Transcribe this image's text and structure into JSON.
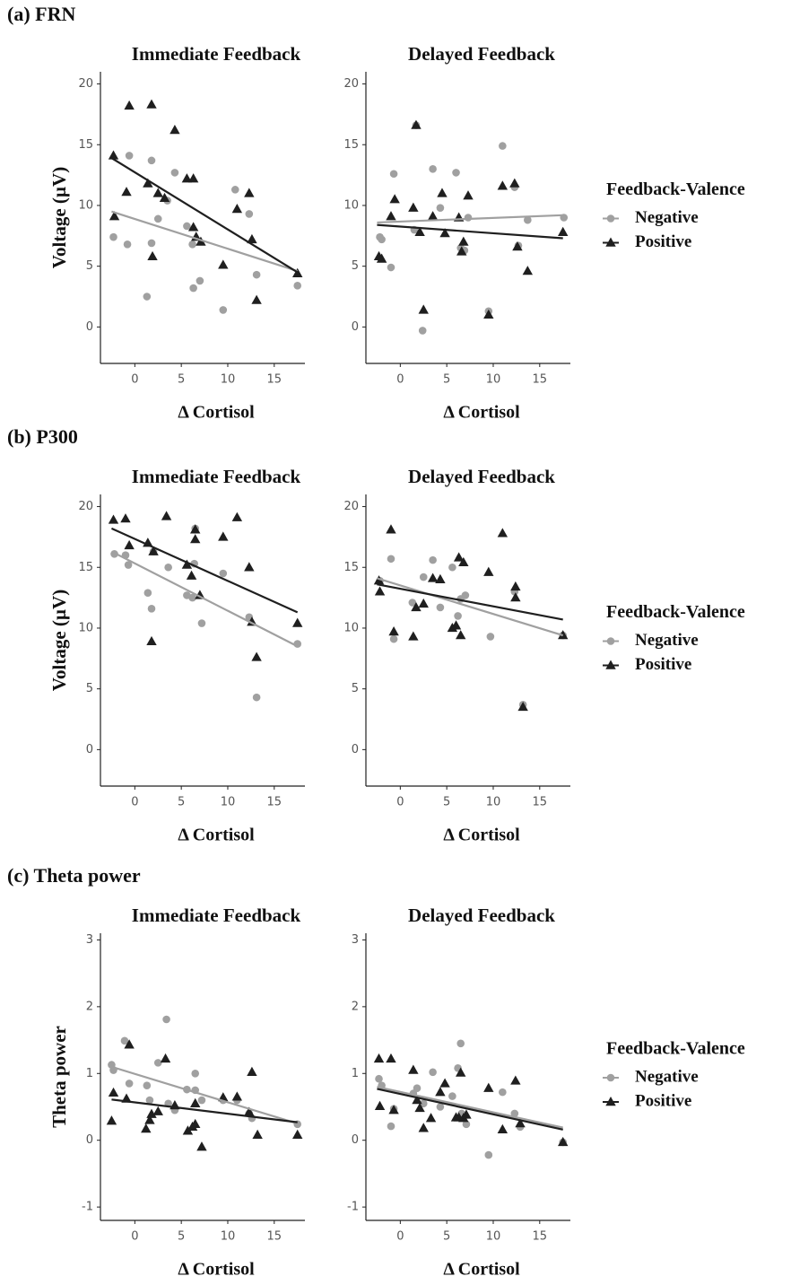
{
  "chart_data": [
    {
      "type": "scatter",
      "panel_label": "(a) FRN",
      "title": "Immediate Feedback",
      "xlabel": "Δ Cortisol",
      "ylabel": "Voltage (µV)",
      "xlim": [
        -3.7,
        18.3
      ],
      "ylim": [
        -3,
        21
      ],
      "xticks": [
        0,
        5,
        10,
        15
      ],
      "yticks": [
        0,
        5,
        10,
        15,
        20
      ],
      "series": [
        {
          "color": "#a0a0a0",
          "marker": "circle",
          "x": [
            -2.3,
            -0.8,
            -0.6,
            1.3,
            1.8,
            1.8,
            2.5,
            3.5,
            4.3,
            5.6,
            6.2,
            6.3,
            7.0,
            9.5,
            10.8,
            12.3,
            13.1,
            17.5
          ],
          "values": [
            7.4,
            6.8,
            14.1,
            2.5,
            13.7,
            6.9,
            8.9,
            10.4,
            12.7,
            8.3,
            6.8,
            3.2,
            3.8,
            1.4,
            11.3,
            9.3,
            4.3,
            3.4
          ],
          "fit_x": [
            -2.5,
            17.5
          ],
          "fit_y": [
            9.5,
            4.6
          ]
        },
        {
          "color": "#1f1f1f",
          "marker": "triangle",
          "x": [
            -2.3,
            -2.2,
            -0.9,
            -0.6,
            1.4,
            1.8,
            1.9,
            2.5,
            3.2,
            4.3,
            5.6,
            6.3,
            6.3,
            6.6,
            7.1,
            9.5,
            11.0,
            12.3,
            12.6,
            13.1,
            17.5
          ],
          "values": [
            14.1,
            9.1,
            11.1,
            18.2,
            11.8,
            18.3,
            5.8,
            11.0,
            10.6,
            16.2,
            12.2,
            12.2,
            8.2,
            7.4,
            7.0,
            5.1,
            9.7,
            11.0,
            7.2,
            2.2,
            4.4
          ],
          "fit_x": [
            -2.5,
            17.5
          ],
          "fit_y": [
            13.9,
            4.5
          ]
        }
      ]
    },
    {
      "type": "scatter",
      "title": "Delayed Feedback",
      "xlabel": "Δ Cortisol",
      "legend_title": "Feedback-Valence",
      "xlim": [
        -3.7,
        18.3
      ],
      "ylim": [
        -3,
        21
      ],
      "xticks": [
        0,
        5,
        10,
        15
      ],
      "yticks": [
        0,
        5,
        10,
        15,
        20
      ],
      "series": [
        {
          "name": "Negative",
          "color": "#a0a0a0",
          "marker": "circle",
          "x": [
            -2.2,
            -2.0,
            -1.0,
            -0.7,
            1.5,
            1.7,
            2.4,
            3.5,
            4.3,
            6.0,
            6.5,
            6.9,
            7.3,
            9.5,
            11.0,
            12.3,
            12.7,
            13.7,
            17.6
          ],
          "values": [
            7.4,
            7.2,
            4.9,
            12.6,
            8.0,
            16.6,
            -0.3,
            13.0,
            9.8,
            12.7,
            6.5,
            6.3,
            9.0,
            1.3,
            14.9,
            11.5,
            6.7,
            8.8,
            9.0
          ],
          "fit_x": [
            -2.5,
            17.5
          ],
          "fit_y": [
            8.6,
            9.2
          ]
        },
        {
          "name": "Positive",
          "color": "#1f1f1f",
          "marker": "triangle",
          "x": [
            -2.3,
            -2.0,
            -1.0,
            -0.6,
            1.4,
            1.7,
            2.1,
            2.5,
            3.5,
            4.5,
            4.8,
            6.3,
            6.6,
            6.8,
            7.3,
            9.5,
            11.0,
            12.3,
            12.6,
            13.7,
            17.5
          ],
          "values": [
            5.8,
            5.6,
            9.1,
            10.5,
            9.8,
            16.6,
            7.8,
            1.4,
            9.1,
            11.0,
            7.7,
            9.0,
            6.2,
            7.0,
            10.8,
            1.0,
            11.6,
            11.8,
            6.6,
            4.6,
            7.8
          ],
          "fit_x": [
            -2.5,
            17.5
          ],
          "fit_y": [
            8.4,
            7.3
          ]
        }
      ]
    },
    {
      "type": "scatter",
      "panel_label": "(b) P300",
      "title": "Immediate Feedback",
      "xlabel": "Δ Cortisol",
      "ylabel": "Voltage (µV)",
      "xlim": [
        -3.7,
        18.3
      ],
      "ylim": [
        -3,
        21
      ],
      "xticks": [
        0,
        5,
        10,
        15
      ],
      "yticks": [
        0,
        5,
        10,
        15,
        20
      ],
      "series": [
        {
          "color": "#a0a0a0",
          "marker": "circle",
          "x": [
            -2.2,
            -1.0,
            -0.7,
            1.4,
            1.8,
            2.0,
            3.6,
            5.6,
            6.2,
            6.4,
            6.5,
            7.2,
            9.5,
            12.3,
            13.1,
            17.5
          ],
          "values": [
            16.1,
            16.0,
            15.2,
            12.9,
            11.6,
            16.3,
            15.0,
            12.7,
            12.5,
            15.3,
            18.2,
            10.4,
            14.5,
            10.9,
            4.3,
            8.7
          ],
          "fit_x": [
            -2.5,
            17.5
          ],
          "fit_y": [
            16.3,
            8.5
          ]
        },
        {
          "color": "#1f1f1f",
          "marker": "triangle",
          "x": [
            -2.3,
            -1.0,
            -0.6,
            1.4,
            1.8,
            2.0,
            3.4,
            5.6,
            6.1,
            6.5,
            6.5,
            7.0,
            9.5,
            11.0,
            12.3,
            12.6,
            13.1,
            17.5
          ],
          "values": [
            18.9,
            19.0,
            16.8,
            17.0,
            8.9,
            16.3,
            19.2,
            15.2,
            14.3,
            18.1,
            17.3,
            12.7,
            17.5,
            19.1,
            15.0,
            10.5,
            7.6,
            10.4
          ],
          "fit_x": [
            -2.5,
            17.5
          ],
          "fit_y": [
            18.2,
            11.3
          ]
        }
      ]
    },
    {
      "type": "scatter",
      "title": "Delayed Feedback",
      "xlabel": "Δ Cortisol",
      "legend_title": "Feedback-Valence",
      "xlim": [
        -3.7,
        18.3
      ],
      "ylim": [
        -3,
        21
      ],
      "xticks": [
        0,
        5,
        10,
        15
      ],
      "yticks": [
        0,
        5,
        10,
        15,
        20
      ],
      "series": [
        {
          "name": "Negative",
          "color": "#a0a0a0",
          "marker": "circle",
          "x": [
            -2.2,
            -1.0,
            -0.7,
            1.3,
            2.5,
            3.5,
            4.3,
            5.6,
            6.2,
            6.5,
            7.0,
            9.7,
            12.3,
            13.2,
            17.5
          ],
          "values": [
            13.9,
            15.7,
            9.1,
            12.1,
            14.2,
            15.6,
            11.7,
            15.0,
            11.0,
            12.4,
            12.7,
            9.3,
            13.0,
            3.7,
            9.4
          ],
          "fit_x": [
            -2.5,
            17.5
          ],
          "fit_y": [
            14.1,
            9.4
          ]
        },
        {
          "name": "Positive",
          "color": "#1f1f1f",
          "marker": "triangle",
          "x": [
            -2.3,
            -2.2,
            -1.0,
            -0.7,
            1.4,
            1.7,
            2.5,
            3.5,
            4.3,
            5.6,
            6.0,
            6.3,
            6.5,
            6.8,
            9.5,
            11.0,
            12.4,
            12.4,
            13.2,
            17.5
          ],
          "values": [
            13.9,
            13.0,
            18.1,
            9.7,
            9.3,
            11.7,
            12.0,
            14.1,
            14.0,
            10.0,
            10.2,
            15.8,
            9.4,
            15.4,
            14.6,
            17.8,
            13.4,
            12.5,
            3.5,
            9.4
          ],
          "fit_x": [
            -2.5,
            17.5
          ],
          "fit_y": [
            13.6,
            10.7
          ]
        }
      ]
    },
    {
      "type": "scatter",
      "panel_label": "(c) Theta power",
      "title": "Immediate Feedback",
      "xlabel": "Δ Cortisol",
      "ylabel": "Theta power",
      "xlim": [
        -3.7,
        18.3
      ],
      "ylim": [
        -1.2,
        3.1
      ],
      "xticks": [
        0,
        5,
        10,
        15
      ],
      "yticks": [
        -1,
        0,
        1,
        2,
        3
      ],
      "series": [
        {
          "color": "#a0a0a0",
          "marker": "circle",
          "x": [
            -2.5,
            -2.3,
            -1.1,
            -0.6,
            1.3,
            1.6,
            2.5,
            3.4,
            3.6,
            4.3,
            5.6,
            6.5,
            6.5,
            7.2,
            9.5,
            11.0,
            12.3,
            12.6,
            17.5
          ],
          "values": [
            1.13,
            1.05,
            1.49,
            0.85,
            0.82,
            0.6,
            1.16,
            1.81,
            0.55,
            0.45,
            0.76,
            1.0,
            0.75,
            0.6,
            0.6,
            0.6,
            0.4,
            0.33,
            0.24
          ],
          "fit_x": [
            -2.5,
            17.5
          ],
          "fit_y": [
            1.1,
            0.25
          ]
        },
        {
          "color": "#1f1f1f",
          "marker": "triangle",
          "x": [
            -2.5,
            -2.3,
            -0.9,
            -0.6,
            1.2,
            1.6,
            1.8,
            2.5,
            3.3,
            4.3,
            5.7,
            6.2,
            6.5,
            6.5,
            7.2,
            9.5,
            11.0,
            12.6,
            12.3,
            13.2,
            17.5
          ],
          "values": [
            0.29,
            0.71,
            0.62,
            1.43,
            0.17,
            0.3,
            0.39,
            0.43,
            1.22,
            0.52,
            0.14,
            0.2,
            0.24,
            0.55,
            -0.1,
            0.64,
            0.65,
            1.02,
            0.42,
            0.08,
            0.08
          ],
          "fit_x": [
            -2.5,
            17.5
          ],
          "fit_y": [
            0.61,
            0.27
          ]
        }
      ]
    },
    {
      "type": "scatter",
      "title": "Delayed Feedback",
      "xlabel": "Δ Cortisol",
      "legend_title": "Feedback-Valence",
      "xlim": [
        -3.7,
        18.3
      ],
      "ylim": [
        -1.2,
        3.1
      ],
      "xticks": [
        0,
        5,
        10,
        15
      ],
      "yticks": [
        -1,
        0,
        1,
        2,
        3
      ],
      "series": [
        {
          "name": "Negative",
          "color": "#a0a0a0",
          "marker": "circle",
          "x": [
            -2.3,
            -2.0,
            -1.0,
            -0.7,
            1.4,
            1.8,
            2.5,
            3.5,
            4.3,
            5.6,
            6.2,
            6.5,
            6.6,
            7.1,
            9.5,
            11.0,
            12.3,
            12.9,
            17.5
          ],
          "values": [
            0.92,
            0.82,
            0.21,
            0.47,
            0.7,
            0.78,
            0.55,
            1.02,
            0.5,
            0.66,
            1.08,
            1.45,
            0.4,
            0.24,
            -0.22,
            0.72,
            0.4,
            0.2,
            -0.03
          ],
          "fit_x": [
            -2.5,
            17.5
          ],
          "fit_y": [
            0.8,
            0.19
          ]
        },
        {
          "name": "Positive",
          "color": "#1f1f1f",
          "marker": "triangle",
          "x": [
            -2.3,
            -2.2,
            -1.0,
            -0.7,
            1.4,
            1.8,
            2.1,
            2.5,
            3.3,
            4.3,
            4.8,
            6.0,
            6.3,
            6.5,
            6.8,
            7.1,
            9.5,
            11.0,
            12.4,
            12.9,
            17.5
          ],
          "values": [
            1.22,
            0.51,
            1.22,
            0.45,
            1.05,
            0.6,
            0.48,
            0.18,
            0.33,
            0.72,
            0.85,
            0.34,
            0.34,
            1.01,
            0.33,
            0.38,
            0.78,
            0.16,
            0.89,
            0.25,
            -0.03
          ],
          "fit_x": [
            -2.5,
            17.5
          ],
          "fit_y": [
            0.77,
            0.16
          ]
        }
      ]
    }
  ]
}
